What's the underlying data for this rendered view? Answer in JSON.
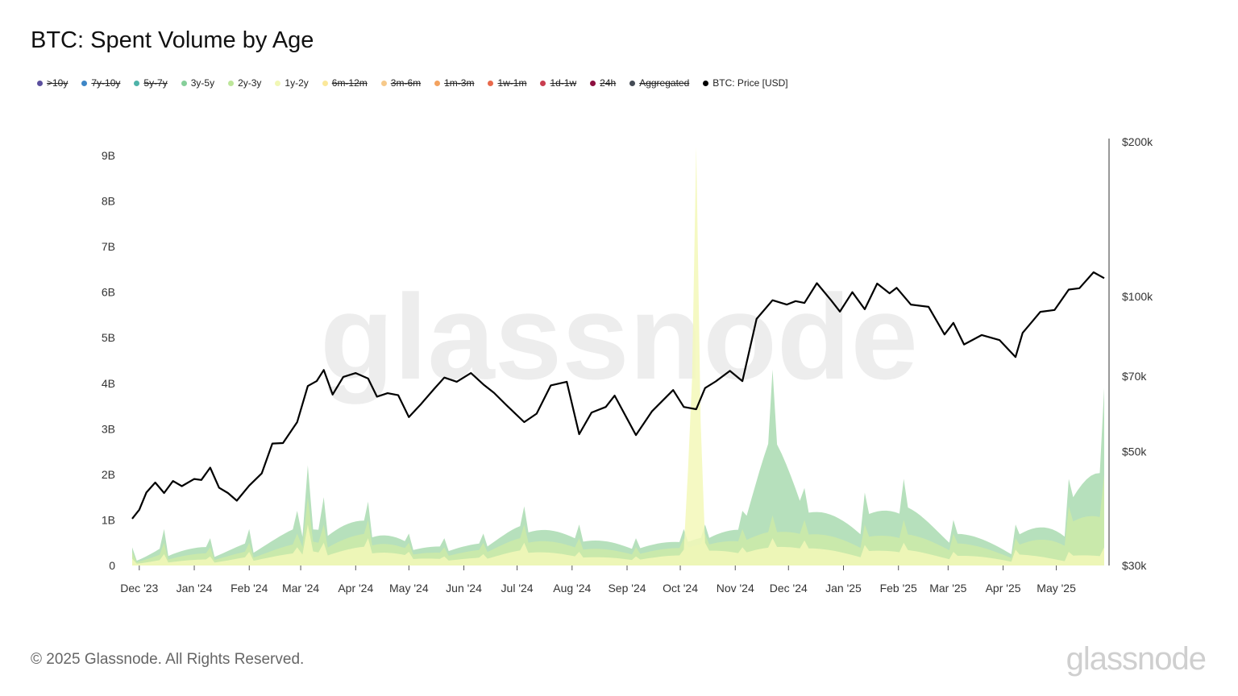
{
  "title": "BTC: Spent Volume by Age",
  "legend": [
    {
      "label": ">10y",
      "color": "#5b4f9e",
      "enabled": false
    },
    {
      "label": "7y-10y",
      "color": "#3d86c6",
      "enabled": false
    },
    {
      "label": "5y-7y",
      "color": "#4fb3a9",
      "enabled": false
    },
    {
      "label": "3y-5y",
      "color": "#86cf9a",
      "enabled": true
    },
    {
      "label": "2y-3y",
      "color": "#bde69a",
      "enabled": true
    },
    {
      "label": "1y-2y",
      "color": "#f1f7b5",
      "enabled": true
    },
    {
      "label": "6m-12m",
      "color": "#fbe89a",
      "enabled": false
    },
    {
      "label": "3m-6m",
      "color": "#f6c98a",
      "enabled": false
    },
    {
      "label": "1m-3m",
      "color": "#f3a25f",
      "enabled": false
    },
    {
      "label": "1w-1m",
      "color": "#e8694c",
      "enabled": false
    },
    {
      "label": "1d-1w",
      "color": "#c93d4f",
      "enabled": false
    },
    {
      "label": "24h",
      "color": "#8c0f3e",
      "enabled": false
    },
    {
      "label": "Aggregated",
      "color": "#444b55",
      "enabled": false
    },
    {
      "label": "BTC: Price [USD]",
      "color": "#000000",
      "enabled": true
    }
  ],
  "footer": {
    "copyright": "© 2025 Glassnode. All Rights Reserved.",
    "logo": "glassnode"
  },
  "watermark": "glassnode",
  "chart_data": {
    "type": "area",
    "title": "BTC: Spent Volume by Age",
    "x_ticks": [
      "Dec '23",
      "Jan '24",
      "Feb '24",
      "Mar '24",
      "Apr '24",
      "May '24",
      "Jun '24",
      "Jul '24",
      "Aug '24",
      "Sep '24",
      "Oct '24",
      "Nov '24",
      "Dec '24",
      "Jan '25",
      "Feb '25",
      "Mar '25",
      "Apr '25",
      "May '25"
    ],
    "y_left_ticks": [
      "0",
      "1B",
      "2B",
      "3B",
      "4B",
      "5B",
      "6B",
      "7B",
      "8B",
      "9B"
    ],
    "y_left_range": [
      0,
      9300000000
    ],
    "y_right_ticks": [
      "$30k",
      "$50k",
      "$70k",
      "$100k",
      "$200k"
    ],
    "y_right_tick_values": [
      30000,
      50000,
      70000,
      100000,
      200000
    ],
    "y_right_scale": "log",
    "x_range": [
      "2023-11-27",
      "2025-05-28"
    ],
    "colors": {
      "3y-5y": "#a9dbb0",
      "2y-3y": "#cdeaa8",
      "1y-2y": "#f3f8b8",
      "price": "#000000"
    },
    "series": [
      {
        "name": "BTC: Price [USD]",
        "axis": "right",
        "x": [
          "2023-11-27",
          "2023-12-01",
          "2023-12-05",
          "2023-12-10",
          "2023-12-15",
          "2023-12-20",
          "2023-12-25",
          "2024-01-01",
          "2024-01-05",
          "2024-01-10",
          "2024-01-15",
          "2024-01-20",
          "2024-01-25",
          "2024-02-01",
          "2024-02-08",
          "2024-02-14",
          "2024-02-20",
          "2024-02-28",
          "2024-03-05",
          "2024-03-10",
          "2024-03-14",
          "2024-03-19",
          "2024-03-25",
          "2024-04-01",
          "2024-04-08",
          "2024-04-13",
          "2024-04-19",
          "2024-04-25",
          "2024-05-01",
          "2024-05-08",
          "2024-05-15",
          "2024-05-21",
          "2024-05-28",
          "2024-06-05",
          "2024-06-12",
          "2024-06-18",
          "2024-06-25",
          "2024-07-05",
          "2024-07-12",
          "2024-07-20",
          "2024-07-29",
          "2024-08-05",
          "2024-08-12",
          "2024-08-20",
          "2024-08-25",
          "2024-09-01",
          "2024-09-06",
          "2024-09-15",
          "2024-09-27",
          "2024-10-03",
          "2024-10-10",
          "2024-10-15",
          "2024-10-21",
          "2024-10-29",
          "2024-11-05",
          "2024-11-08",
          "2024-11-13",
          "2024-11-22",
          "2024-11-30",
          "2024-12-05",
          "2024-12-10",
          "2024-12-17",
          "2024-12-25",
          "2024-12-30",
          "2025-01-06",
          "2025-01-13",
          "2025-01-20",
          "2025-01-27",
          "2025-01-31",
          "2025-02-08",
          "2025-02-18",
          "2025-02-27",
          "2025-03-04",
          "2025-03-10",
          "2025-03-20",
          "2025-03-30",
          "2025-04-08",
          "2025-04-12",
          "2025-04-22",
          "2025-04-30",
          "2025-05-08",
          "2025-05-14",
          "2025-05-22",
          "2025-05-28"
        ],
        "values": [
          37000,
          38500,
          41600,
          43500,
          41500,
          43800,
          42800,
          44200,
          44000,
          46500,
          42500,
          41500,
          40100,
          42900,
          45300,
          51800,
          51900,
          57000,
          67000,
          68500,
          72000,
          64500,
          69800,
          71000,
          69300,
          63900,
          64900,
          64300,
          58300,
          61900,
          66000,
          69600,
          68300,
          71000,
          67500,
          65000,
          61500,
          57000,
          59200,
          67200,
          68300,
          54000,
          59500,
          61000,
          64200,
          57900,
          53800,
          59800,
          65800,
          61000,
          60400,
          66400,
          68400,
          71700,
          68500,
          76000,
          90500,
          98400,
          96500,
          98000,
          97200,
          106200,
          98400,
          93500,
          102000,
          94500,
          106000,
          101500,
          104000,
          96500,
          95500,
          84400,
          88900,
          80700,
          84200,
          82300,
          76300,
          85000,
          93400,
          94200,
          103200,
          103800,
          111500,
          108600
        ]
      },
      {
        "name": "1y-2y",
        "axis": "left",
        "x": [
          "2023-11-27",
          "2023-12-15",
          "2024-01-10",
          "2024-02-01",
          "2024-02-28",
          "2024-03-05",
          "2024-03-14",
          "2024-04-08",
          "2024-05-01",
          "2024-05-21",
          "2024-06-12",
          "2024-07-05",
          "2024-08-05",
          "2024-09-06",
          "2024-10-03",
          "2024-10-10",
          "2024-10-15",
          "2024-11-05",
          "2024-11-22",
          "2024-12-10",
          "2025-01-13",
          "2025-02-04",
          "2025-03-04",
          "2025-04-08",
          "2025-05-08",
          "2025-05-28"
        ],
        "values": [
          150000000,
          250000000,
          200000000,
          300000000,
          400000000,
          900000000,
          500000000,
          600000000,
          300000000,
          200000000,
          250000000,
          500000000,
          300000000,
          200000000,
          350000000,
          9200000000,
          500000000,
          400000000,
          600000000,
          550000000,
          450000000,
          500000000,
          300000000,
          350000000,
          300000000,
          400000000
        ]
      },
      {
        "name": "2y-3y",
        "axis": "left",
        "x": [
          "2023-11-27",
          "2023-12-15",
          "2024-01-10",
          "2024-02-01",
          "2024-02-28",
          "2024-03-05",
          "2024-03-14",
          "2024-04-08",
          "2024-05-01",
          "2024-05-21",
          "2024-06-12",
          "2024-07-05",
          "2024-08-05",
          "2024-09-06",
          "2024-10-03",
          "2024-10-15",
          "2024-11-05",
          "2024-11-22",
          "2024-12-10",
          "2025-01-13",
          "2025-02-04",
          "2025-03-04",
          "2025-04-08",
          "2025-05-08",
          "2025-05-28"
        ],
        "values": [
          300000000,
          500000000,
          400000000,
          500000000,
          700000000,
          1500000000,
          900000000,
          1000000000,
          500000000,
          400000000,
          500000000,
          900000000,
          600000000,
          400000000,
          600000000,
          700000000,
          800000000,
          1100000000,
          1000000000,
          900000000,
          1000000000,
          700000000,
          600000000,
          1300000000,
          2000000000
        ]
      },
      {
        "name": "3y-5y",
        "axis": "left",
        "x": [
          "2023-11-27",
          "2023-12-15",
          "2024-01-10",
          "2024-02-01",
          "2024-02-28",
          "2024-03-05",
          "2024-03-14",
          "2024-04-08",
          "2024-05-01",
          "2024-05-21",
          "2024-06-12",
          "2024-07-05",
          "2024-08-05",
          "2024-09-06",
          "2024-10-03",
          "2024-10-15",
          "2024-11-05",
          "2024-11-22",
          "2024-12-10",
          "2025-01-13",
          "2025-02-04",
          "2025-03-04",
          "2025-04-08",
          "2025-05-08",
          "2025-05-28"
        ],
        "values": [
          400000000,
          800000000,
          600000000,
          800000000,
          1200000000,
          2200000000,
          1500000000,
          1400000000,
          700000000,
          600000000,
          700000000,
          1300000000,
          900000000,
          600000000,
          800000000,
          900000000,
          1200000000,
          4300000000,
          1700000000,
          1600000000,
          1900000000,
          1000000000,
          900000000,
          1900000000,
          3900000000
        ]
      }
    ]
  }
}
